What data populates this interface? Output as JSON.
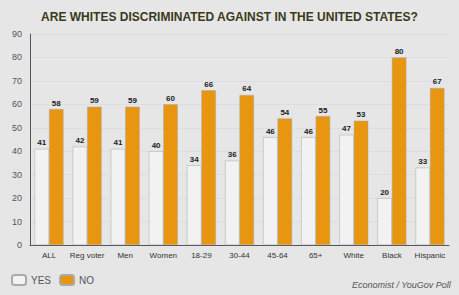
{
  "chart_data": {
    "type": "bar",
    "title": "ARE WHITES DISCRIMINATED AGAINST IN THE UNITED STATES?",
    "categories": [
      "ALL",
      "Reg voter",
      "Men",
      "Women",
      "18-29",
      "30-44",
      "45-64",
      "65+",
      "White",
      "Black",
      "Hispanic"
    ],
    "series": [
      {
        "name": "YES",
        "color": "#f2f2f2",
        "values": [
          41,
          42,
          41,
          40,
          34,
          36,
          46,
          46,
          47,
          20,
          33
        ]
      },
      {
        "name": "NO",
        "color": "#E89610",
        "values": [
          58,
          59,
          59,
          60,
          66,
          64,
          54,
          55,
          53,
          80,
          67
        ]
      }
    ],
    "ylim": [
      0,
      90
    ],
    "yticks": [
      0,
      10,
      20,
      30,
      40,
      50,
      60,
      70,
      80,
      90
    ],
    "grid": true,
    "legend": "bottom left",
    "data_labels": true,
    "annotations": [
      "Economist / YouGov Poll"
    ]
  }
}
